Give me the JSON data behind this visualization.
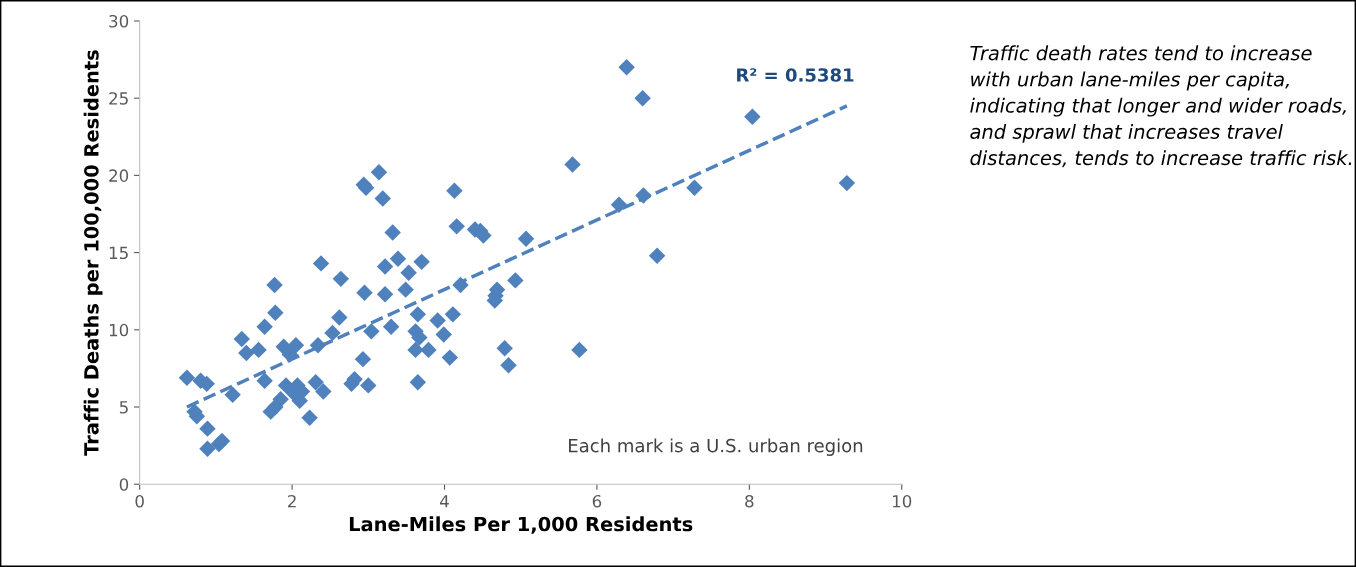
{
  "chart_data": {
    "type": "scatter",
    "xlabel": "Lane-Miles Per 1,000 Residents",
    "ylabel": "Traffic Deaths per 100,000 Residents",
    "xlim": [
      0,
      10
    ],
    "xticks": [
      0,
      2,
      4,
      6,
      8,
      10
    ],
    "ylim": [
      0,
      30
    ],
    "yticks": [
      0,
      5,
      10,
      15,
      20,
      25,
      30
    ],
    "grid": false,
    "legend": false,
    "series": [
      {
        "marker": "diamond",
        "color": "#4f81bd",
        "x": [
          0.62,
          0.8,
          0.88,
          0.72,
          0.75,
          0.89,
          0.89,
          1.04,
          1.08,
          1.22,
          1.34,
          1.4,
          1.56,
          1.64,
          1.64,
          1.72,
          1.78,
          1.77,
          1.78,
          1.85,
          1.89,
          1.92,
          1.97,
          2.05,
          2.02,
          2.07,
          2.1,
          2.13,
          2.23,
          2.31,
          2.34,
          2.38,
          2.41,
          2.53,
          2.62,
          2.64,
          2.78,
          2.82,
          2.93,
          2.95,
          2.94,
          2.97,
          3.0,
          3.04,
          3.14,
          3.19,
          3.22,
          3.22,
          3.3,
          3.32,
          3.39,
          3.49,
          3.53,
          3.62,
          3.62,
          3.65,
          3.65,
          3.67,
          3.7,
          3.79,
          3.91,
          3.99,
          4.07,
          4.11,
          4.13,
          4.16,
          4.21,
          4.4,
          4.47,
          4.51,
          5.07,
          4.67,
          4.69,
          4.66,
          4.79,
          4.84,
          4.93,
          5.68,
          5.77,
          6.29,
          6.39,
          6.6,
          6.61,
          6.79,
          7.28,
          8.04,
          9.28
        ],
        "values": [
          6.9,
          6.7,
          6.5,
          4.7,
          4.4,
          3.6,
          2.3,
          2.6,
          2.8,
          5.8,
          9.4,
          8.5,
          8.7,
          10.2,
          6.7,
          4.7,
          5.0,
          12.9,
          11.1,
          5.5,
          8.9,
          6.4,
          8.4,
          9.0,
          5.9,
          6.4,
          5.4,
          6.0,
          4.3,
          6.6,
          9.0,
          14.3,
          6.0,
          9.8,
          10.8,
          13.3,
          6.5,
          6.8,
          8.1,
          12.4,
          19.4,
          19.2,
          6.4,
          9.9,
          20.2,
          18.5,
          14.1,
          12.3,
          10.2,
          16.3,
          14.6,
          12.6,
          13.7,
          9.9,
          8.7,
          6.6,
          11.0,
          9.5,
          14.4,
          8.7,
          10.6,
          9.7,
          8.2,
          11.0,
          19.0,
          16.7,
          12.9,
          16.5,
          16.4,
          16.1,
          15.9,
          12.2,
          12.6,
          11.9,
          8.8,
          7.7,
          13.2,
          20.7,
          8.7,
          18.1,
          27.0,
          25.0,
          18.7,
          14.8,
          19.2,
          23.8,
          19.5
        ]
      },
      {
        "type": "line",
        "color": "#4f81bd",
        "line_style": "dashed",
        "x": [
          0.62,
          9.28
        ],
        "values": [
          5.0,
          24.5
        ]
      }
    ],
    "annotations": [
      "R² = 0.5381",
      "Each mark is a U.S. urban region",
      "Traffic death rates tend to increase with urban lane-miles per capita, indicating that longer and wider roads, and sprawl that increases travel distances, tends to increase traffic risk."
    ]
  }
}
